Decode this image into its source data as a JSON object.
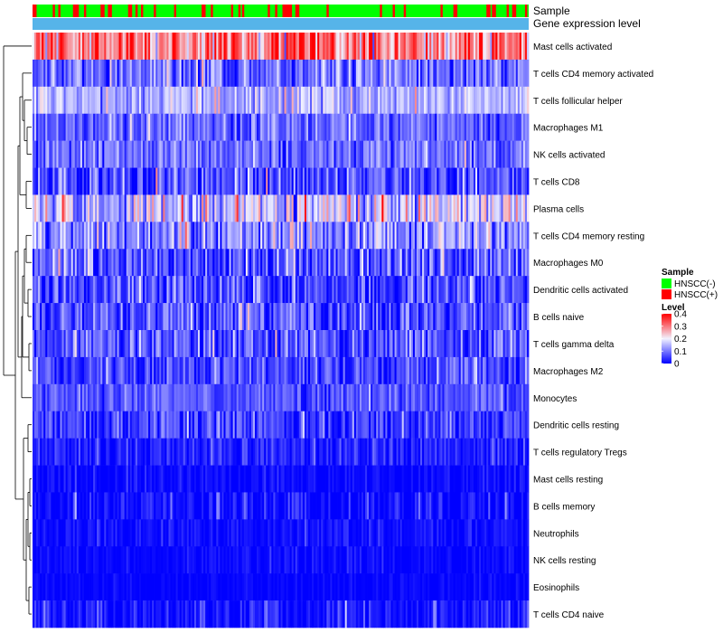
{
  "chart_data": {
    "type": "heatmap",
    "title": "",
    "annotation_rows": [
      {
        "label": "Sample",
        "kind": "sample_group"
      },
      {
        "label": "Gene expression level",
        "kind": "constant",
        "color": "#56B4E9"
      }
    ],
    "rows": [
      {
        "label": "Mast cells activated",
        "mean": 0.3,
        "spread": 0.08
      },
      {
        "label": "T cells CD4 memory activated",
        "mean": 0.09,
        "spread": 0.05
      },
      {
        "label": "T cells follicular helper",
        "mean": 0.15,
        "spread": 0.04
      },
      {
        "label": "Macrophages M1",
        "mean": 0.08,
        "spread": 0.04
      },
      {
        "label": "NK cells activated",
        "mean": 0.09,
        "spread": 0.04
      },
      {
        "label": "T cells CD8",
        "mean": 0.06,
        "spread": 0.05
      },
      {
        "label": "Plasma cells",
        "mean": 0.17,
        "spread": 0.07
      },
      {
        "label": "T cells CD4 memory resting",
        "mean": 0.11,
        "spread": 0.06
      },
      {
        "label": "Macrophages M0",
        "mean": 0.07,
        "spread": 0.06
      },
      {
        "label": "Dendritic cells activated",
        "mean": 0.06,
        "spread": 0.05
      },
      {
        "label": "B cells naive",
        "mean": 0.07,
        "spread": 0.05
      },
      {
        "label": "T cells gamma delta",
        "mean": 0.07,
        "spread": 0.05
      },
      {
        "label": "Macrophages M2",
        "mean": 0.06,
        "spread": 0.04
      },
      {
        "label": "Monocytes",
        "mean": 0.07,
        "spread": 0.03
      },
      {
        "label": "Dendritic cells resting",
        "mean": 0.05,
        "spread": 0.04
      },
      {
        "label": "T cells regulatory  Tregs",
        "mean": 0.03,
        "spread": 0.03
      },
      {
        "label": "Mast cells resting",
        "mean": 0.005,
        "spread": 0.02
      },
      {
        "label": "B cells memory",
        "mean": 0.01,
        "spread": 0.03
      },
      {
        "label": "Neutrophils",
        "mean": 0.01,
        "spread": 0.02
      },
      {
        "label": "NK cells resting",
        "mean": 0.005,
        "spread": 0.015
      },
      {
        "label": "Eosinophils",
        "mean": 0.003,
        "spread": 0.01
      },
      {
        "label": "T cells CD4 naive",
        "mean": 0.01,
        "spread": 0.03
      }
    ],
    "n_samples": 270,
    "seed": 7,
    "positive_fraction": 0.22,
    "color_scale": {
      "min": 0,
      "max": 0.4,
      "ticks": [
        "0",
        "0.1",
        "0.2",
        "0.3",
        "0.4"
      ],
      "stops": [
        {
          "value": 0,
          "color": "#0000FF"
        },
        {
          "value": 0.2,
          "color": "#F2F2FF"
        },
        {
          "value": 0.4,
          "color": "#FF0000"
        }
      ]
    },
    "legend": {
      "sample_title": "Sample",
      "sample_groups": [
        {
          "label": "HNSCC(-)",
          "color": "#00FF00"
        },
        {
          "label": "HNSCC(+)",
          "color": "#FF0000"
        }
      ],
      "level_title": "Level",
      "placement": "right"
    },
    "dendrogram": "row-clustering"
  }
}
